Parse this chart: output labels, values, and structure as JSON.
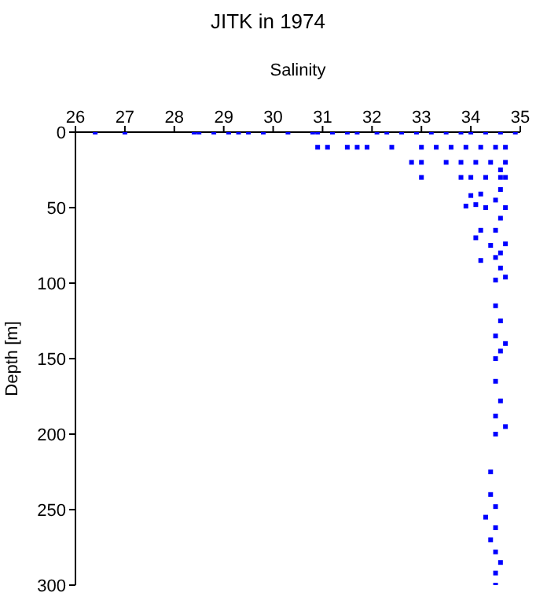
{
  "chart_data": {
    "type": "scatter",
    "title": "JITK in 1974",
    "xlabel": "Salinity",
    "ylabel": "Depth [m]",
    "xlim": [
      26,
      35
    ],
    "xticks": [
      26,
      27,
      28,
      29,
      30,
      31,
      32,
      33,
      34,
      35
    ],
    "ylim": [
      300,
      0
    ],
    "yticks": [
      0,
      50,
      100,
      150,
      200,
      250,
      300
    ],
    "grid": false,
    "marker": "square",
    "series": [
      {
        "color": "#0000ff",
        "x": [
          26.4,
          27.0,
          28.4,
          28.5,
          28.8,
          29.1,
          29.3,
          29.5,
          29.8,
          30.3,
          30.8,
          30.9,
          31.2,
          31.5,
          31.7,
          32.1,
          32.3,
          32.6,
          32.9,
          33.2,
          33.5,
          33.8,
          34.0,
          34.3,
          34.6,
          34.9,
          30.9,
          31.1,
          31.5,
          31.7,
          31.9,
          32.4,
          33.0,
          33.3,
          33.6,
          33.9,
          34.2,
          34.5,
          34.7,
          32.8,
          33.0,
          33.5,
          33.8,
          34.1,
          34.4,
          34.7,
          33.0,
          33.8,
          34.0,
          34.3,
          34.6,
          34.7,
          34.6,
          34.0,
          34.2,
          33.9,
          34.1,
          34.3,
          34.5,
          34.6,
          34.7,
          34.6,
          34.5,
          34.1,
          34.2,
          34.4,
          34.7,
          34.6,
          34.2,
          34.5,
          34.6,
          34.5,
          34.7,
          34.5,
          34.6,
          34.5,
          34.6,
          34.7,
          34.5,
          34.5,
          34.6,
          34.5,
          34.7,
          34.5,
          34.4,
          34.4,
          34.5,
          34.3,
          34.5,
          34.4,
          34.5,
          34.6,
          34.5,
          34.5
        ],
        "values": [
          0,
          0,
          0,
          0,
          0,
          0,
          0,
          0,
          0,
          0,
          0,
          0,
          0,
          0,
          0,
          0,
          0,
          0,
          0,
          0,
          0,
          0,
          0,
          0,
          0,
          0,
          10,
          10,
          10,
          10,
          10,
          10,
          10,
          10,
          10,
          10,
          10,
          10,
          10,
          20,
          20,
          20,
          20,
          20,
          20,
          20,
          30,
          30,
          30,
          30,
          30,
          30,
          25,
          42,
          41,
          49,
          48,
          50,
          45,
          38,
          50,
          57,
          65,
          70,
          65,
          75,
          74,
          80,
          85,
          83,
          90,
          98,
          96,
          115,
          125,
          135,
          145,
          140,
          150,
          165,
          178,
          188,
          195,
          200,
          225,
          240,
          248,
          255,
          262,
          270,
          278,
          285,
          292,
          300
        ]
      }
    ]
  }
}
